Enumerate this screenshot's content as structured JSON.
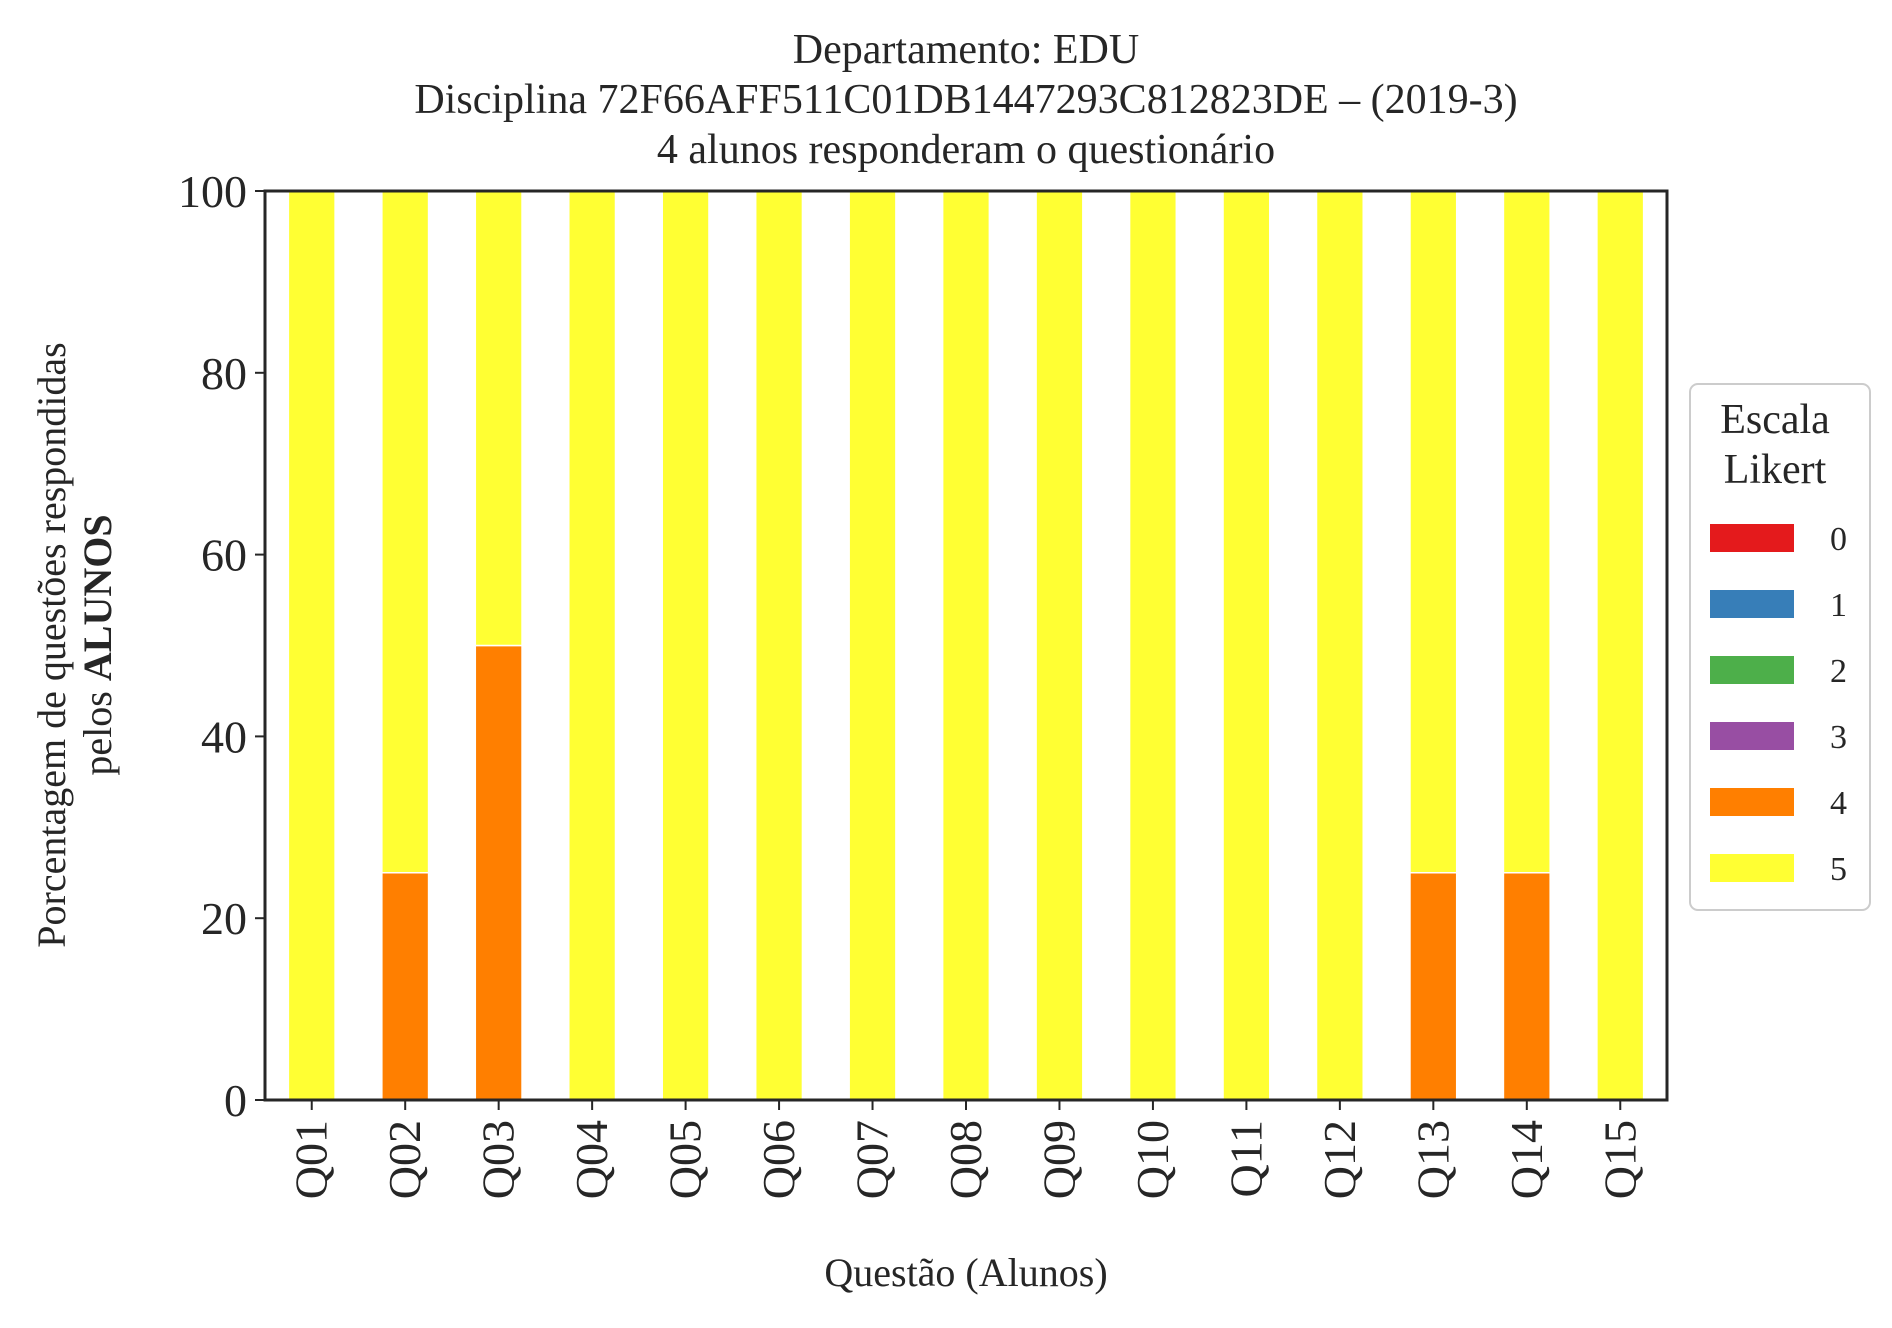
{
  "chart_data": {
    "type": "bar",
    "stacked": true,
    "title_lines": [
      "Departamento: EDU",
      "Disciplina 72F66AFF511C01DB1447293C812823DE – (2019-3)",
      "4 alunos responderam o questionário"
    ],
    "xlabel": "Questão (Alunos)",
    "ylabel_line1": "Porcentagem de questões respondidas",
    "ylabel_line2_prefix": "pelos ",
    "ylabel_line2_bold": "ALUNOS",
    "ylim": [
      0,
      100
    ],
    "yticks": [
      0,
      20,
      40,
      60,
      80,
      100
    ],
    "categories": [
      "Q01",
      "Q02",
      "Q03",
      "Q04",
      "Q05",
      "Q06",
      "Q07",
      "Q08",
      "Q09",
      "Q10",
      "Q11",
      "Q12",
      "Q13",
      "Q14",
      "Q15"
    ],
    "legend": {
      "title_lines": [
        "Escala",
        "Likert"
      ],
      "placement": "center-right outside"
    },
    "series": [
      {
        "name": "0",
        "color": "#e41a1c",
        "values": [
          0,
          0,
          0,
          0,
          0,
          0,
          0,
          0,
          0,
          0,
          0,
          0,
          0,
          0,
          0
        ]
      },
      {
        "name": "1",
        "color": "#377eb8",
        "values": [
          0,
          0,
          0,
          0,
          0,
          0,
          0,
          0,
          0,
          0,
          0,
          0,
          0,
          0,
          0
        ]
      },
      {
        "name": "2",
        "color": "#4daf4a",
        "values": [
          0,
          0,
          0,
          0,
          0,
          0,
          0,
          0,
          0,
          0,
          0,
          0,
          0,
          0,
          0
        ]
      },
      {
        "name": "3",
        "color": "#984ea3",
        "values": [
          0,
          0,
          0,
          0,
          0,
          0,
          0,
          0,
          0,
          0,
          0,
          0,
          0,
          0,
          0
        ]
      },
      {
        "name": "4",
        "color": "#ff7f00",
        "values": [
          0,
          25,
          50,
          0,
          0,
          0,
          0,
          0,
          0,
          0,
          0,
          0,
          25,
          25,
          0
        ]
      },
      {
        "name": "5",
        "color": "#ffff33",
        "values": [
          100,
          75,
          50,
          100,
          100,
          100,
          100,
          100,
          100,
          100,
          100,
          100,
          75,
          75,
          100
        ]
      }
    ],
    "grid": false
  }
}
